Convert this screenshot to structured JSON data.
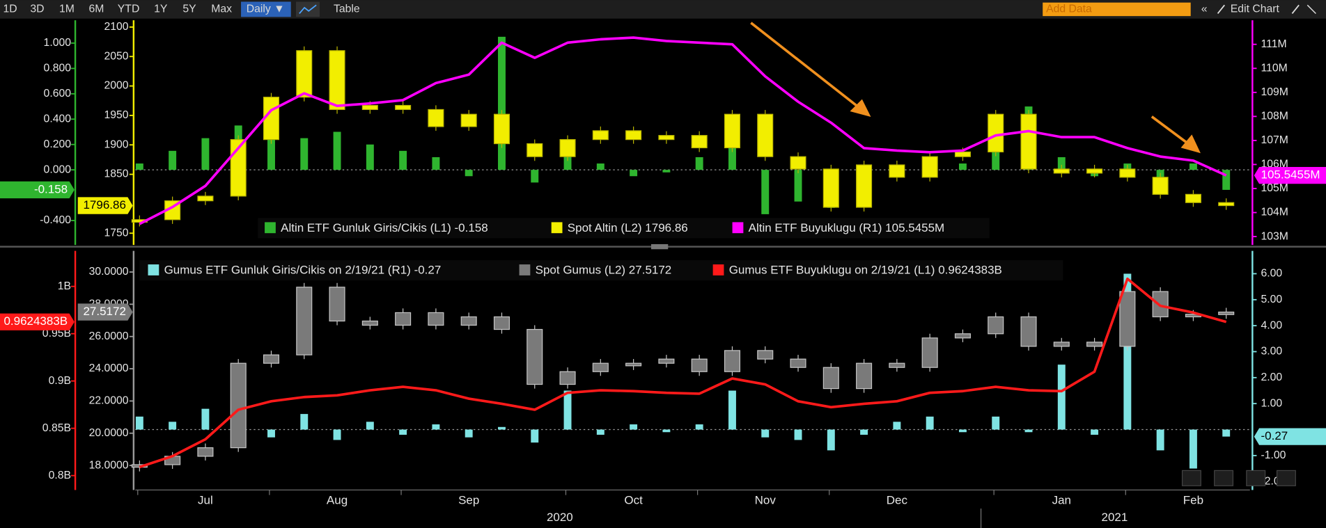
{
  "toolbar": {
    "ranges": [
      "1D",
      "3D",
      "1M",
      "6M",
      "YTD",
      "1Y",
      "5Y",
      "Max"
    ],
    "frequency": "Daily ▼",
    "table": "Table",
    "add_data": "Add Data",
    "edit_chart": "Edit Chart"
  },
  "chart_data": [
    {
      "type": "combo",
      "axes": {
        "L1": {
          "ylim": [
            -0.593,
            1.18
          ],
          "color": "#2fb52f",
          "yticks": [
            {
              "value": 1,
              "label": "1.000"
            },
            {
              "value": 0.8,
              "label": "0.800"
            },
            {
              "value": 0.6,
              "label": "0.600"
            },
            {
              "value": 0.4,
              "label": "0.400"
            },
            {
              "value": 0.2,
              "label": "0.200"
            },
            {
              "value": 0,
              "label": "0.000"
            },
            {
              "value": -0.4,
              "label": "-0.400"
            }
          ]
        },
        "L2": {
          "ylim": [
            1730,
            2111.5
          ],
          "color": "#f2ee00",
          "yticks": [
            2100,
            2050,
            2000,
            1950,
            1900,
            1850,
            1750
          ]
        },
        "R1": {
          "ylim": [
            102.65,
            112
          ],
          "color": "#ff00ff",
          "yticks": [
            {
              "value": 111,
              "label": "111M"
            },
            {
              "value": 110,
              "label": "110M"
            },
            {
              "value": 109,
              "label": "109M"
            },
            {
              "value": 108,
              "label": "108M"
            },
            {
              "value": 107,
              "label": "107M"
            },
            {
              "value": 106,
              "label": "106M"
            },
            {
              "value": 105,
              "label": "105M"
            },
            {
              "value": 104,
              "label": "104M"
            },
            {
              "value": 103,
              "label": "103M"
            }
          ]
        }
      },
      "series": [
        {
          "name": "Altin ETF Gunluk Giris/Cikis (L1) -0.158",
          "type": "bar",
          "axis": "L1",
          "color": "#2fb52f",
          "tag": "-0.158",
          "values": [
            0.05,
            0.15,
            0.25,
            0.35,
            0.45,
            0.25,
            0.3,
            0.2,
            0.15,
            0.1,
            -0.05,
            1.05,
            -0.1,
            0.15,
            0.05,
            -0.05,
            -0.02,
            0.1,
            0.3,
            -0.35,
            -0.25,
            -0.3,
            -0.1,
            -0.05,
            0.1,
            0.05,
            0.25,
            0.5,
            0.1,
            -0.05,
            0.05,
            -0.1,
            0.05,
            -0.158
          ]
        },
        {
          "name": "Spot Altin (L2) 1796.86",
          "type": "candle",
          "axis": "L2",
          "color": "#f2ee00",
          "tag": "1796.86",
          "values": [
            1773,
            1805,
            1813,
            1909,
            1981,
            2060,
            1960,
            1967,
            1960,
            1931,
            1952,
            1902,
            1880,
            1909,
            1924,
            1909,
            1916,
            1895,
            1952,
            1880,
            1859,
            1794,
            1866,
            1845,
            1880,
            1888,
            1952,
            1859,
            1852,
            1859,
            1845,
            1816,
            1802,
            1796.86
          ]
        },
        {
          "name": "Altin ETF Buyuklugu (R1) 105.5455M",
          "type": "line",
          "axis": "R1",
          "color": "#ff00ff",
          "tag": "105.5455M",
          "values": [
            103.53,
            104.23,
            105.11,
            106.68,
            108.26,
            108.96,
            108.44,
            108.54,
            108.68,
            109.39,
            109.74,
            111.07,
            110.44,
            111.07,
            111.21,
            111.28,
            111.14,
            111.07,
            111,
            109.67,
            108.61,
            107.74,
            106.68,
            106.58,
            106.51,
            106.58,
            107.21,
            107.39,
            107.14,
            107.14,
            106.68,
            106.33,
            106.16,
            105.5455
          ]
        }
      ]
    },
    {
      "type": "combo",
      "categories": [
        null,
        null,
        "Jul",
        null,
        null,
        null,
        "Aug",
        null,
        null,
        null,
        "Sep",
        null,
        null,
        null,
        null,
        "Oct",
        null,
        null,
        null,
        "Nov",
        null,
        null,
        null,
        "Dec",
        null,
        null,
        null,
        null,
        "Jan",
        null,
        null,
        null,
        "Feb",
        null
      ],
      "x_groups": [
        "2020",
        "2021"
      ],
      "axes": {
        "L1": {
          "ylim": [
            0.7848,
            1.0375
          ],
          "color": "#ff1a1a",
          "yticks": [
            {
              "value": 1,
              "label": "1B"
            },
            {
              "value": 0.95,
              "label": "0.95B"
            },
            {
              "value": 0.9,
              "label": "0.9B"
            },
            {
              "value": 0.85,
              "label": "0.85B"
            },
            {
              "value": 0.8,
              "label": "0.8B"
            }
          ]
        },
        "L2": {
          "ylim": [
            16.48,
            31.31
          ],
          "color": "#9a9a9a",
          "yticks": [
            {
              "value": 30,
              "label": "30.0000"
            },
            {
              "value": 28,
              "label": "28.0000"
            },
            {
              "value": 26,
              "label": "26.0000"
            },
            {
              "value": 24,
              "label": "24.0000"
            },
            {
              "value": 22,
              "label": "22.0000"
            },
            {
              "value": 20,
              "label": "20.0000"
            },
            {
              "value": 18,
              "label": "18.0000"
            }
          ]
        },
        "R1": {
          "ylim": [
            -2.325,
            6.878
          ],
          "color": "#7fe3e3",
          "yticks": [
            {
              "value": 6,
              "label": "6.00"
            },
            {
              "value": 5,
              "label": "5.00"
            },
            {
              "value": 4,
              "label": "4.00"
            },
            {
              "value": 3,
              "label": "3.00"
            },
            {
              "value": 2,
              "label": "2.00"
            },
            {
              "value": 1,
              "label": "1.00"
            },
            {
              "value": -1,
              "label": "-1.00"
            },
            {
              "value": -2,
              "label": "-2.00"
            }
          ]
        }
      },
      "series": [
        {
          "name": "Gumus ETF Gunluk Giris/Cikis on 2/19/21 (R1) -0.27",
          "type": "bar",
          "axis": "R1",
          "color": "#7fe3e3",
          "tag": "-0.27",
          "values": [
            0.5,
            0.3,
            0.8,
            1.0,
            -0.3,
            0.6,
            -0.4,
            0.3,
            -0.2,
            0.2,
            -0.3,
            0.1,
            -0.5,
            1.5,
            -0.2,
            0.2,
            -0.1,
            0.2,
            1.5,
            -0.3,
            -0.4,
            -0.8,
            -0.2,
            0.3,
            0.5,
            -0.1,
            0.5,
            -0.1,
            2.5,
            -0.2,
            6.0,
            -0.8,
            -1.5,
            -0.27
          ]
        },
        {
          "name": "Spot Gumus (L2) 27.5172",
          "type": "candle",
          "axis": "L2",
          "color": "#7a7a7a",
          "tag": "27.5172",
          "values": [
            18.05,
            18.57,
            19.1,
            24.34,
            24.86,
            29.06,
            26.96,
            26.7,
            27.48,
            26.7,
            27.22,
            26.44,
            23.03,
            23.82,
            24.34,
            24.34,
            24.6,
            23.82,
            25.13,
            24.6,
            24.08,
            22.77,
            24.34,
            24.08,
            25.91,
            26.17,
            27.22,
            25.39,
            25.65,
            25.39,
            28.79,
            27.22,
            27.38,
            27.5172
          ]
        },
        {
          "name": "Gumus ETF Buyuklugu on 2/19/21 (L1) 0.9624383B",
          "type": "line",
          "axis": "L1",
          "color": "#ff1a1a",
          "tag": "0.9624383B",
          "values": [
            0.809,
            0.8205,
            0.8384,
            0.8696,
            0.8786,
            0.883,
            0.8848,
            0.8902,
            0.8938,
            0.8902,
            0.8813,
            0.8759,
            0.8696,
            0.8875,
            0.8902,
            0.8893,
            0.8875,
            0.8866,
            0.9027,
            0.8964,
            0.8786,
            0.8723,
            0.8759,
            0.8786,
            0.8875,
            0.8893,
            0.8938,
            0.8902,
            0.8893,
            0.9098,
            1.008,
            0.9795,
            0.9723,
            0.9624383
          ]
        }
      ]
    }
  ]
}
